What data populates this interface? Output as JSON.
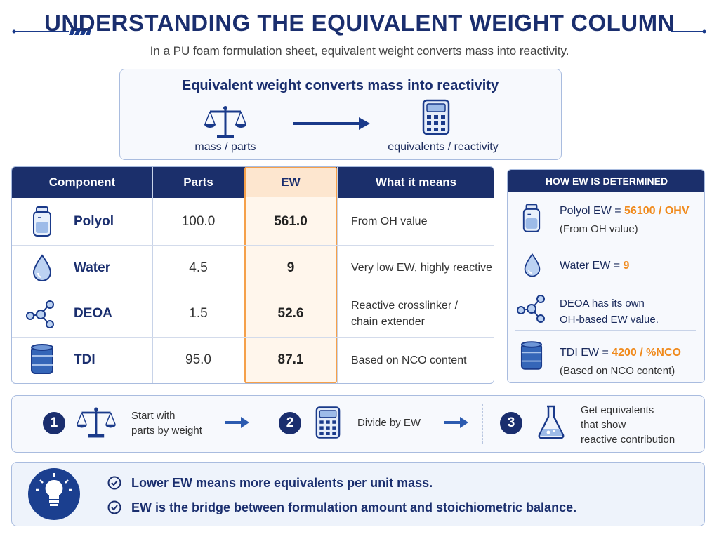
{
  "header": {
    "title": "UNDERSTANDING THE EQUIVALENT WEIGHT COLUMN",
    "subtitle": "In a PU foam formulation sheet, equivalent weight converts mass into reactivity."
  },
  "concept": {
    "title": "Equivalent weight converts mass into reactivity",
    "left_label": "mass / parts",
    "right_label": "equivalents / reactivity"
  },
  "table": {
    "columns": [
      "Component",
      "Parts",
      "EW",
      "What it means"
    ],
    "rows": [
      {
        "component": "Polyol",
        "parts": "100.0",
        "ew": "561.0",
        "meaning": [
          "From OH value"
        ]
      },
      {
        "component": "Water",
        "parts": "4.5",
        "ew": "9",
        "meaning": [
          "Very low EW, highly reactive"
        ]
      },
      {
        "component": "DEOA",
        "parts": "1.5",
        "ew": "52.6",
        "meaning": [
          "Reactive crosslinker /",
          "chain extender"
        ]
      },
      {
        "component": "TDI",
        "parts": "95.0",
        "ew": "87.1",
        "meaning": [
          "Based on NCO content"
        ]
      }
    ]
  },
  "side_panel": {
    "title": "HOW EW IS DETERMINED",
    "items": [
      {
        "text": "Polyol EW = ",
        "highlight": "56100 / OHV",
        "note": "(From OH value)"
      },
      {
        "text": "Water EW = ",
        "highlight": "9"
      },
      {
        "text": "DEOA has its own",
        "note": "OH-based EW value."
      },
      {
        "text": "TDI EW = ",
        "highlight": "4200 / %NCO",
        "note": "(Based on NCO content)"
      }
    ]
  },
  "steps": [
    {
      "number": "1",
      "text": [
        "Start with",
        "parts by weight"
      ]
    },
    {
      "number": "2",
      "text": [
        "Divide by EW"
      ]
    },
    {
      "number": "3",
      "text": [
        "Get equivalents",
        "that show",
        "reactive contribution"
      ]
    }
  ],
  "tips": [
    "Lower EW means more equivalents per unit mass.",
    "EW is the bridge between formulation amount and stoichiometric balance."
  ]
}
